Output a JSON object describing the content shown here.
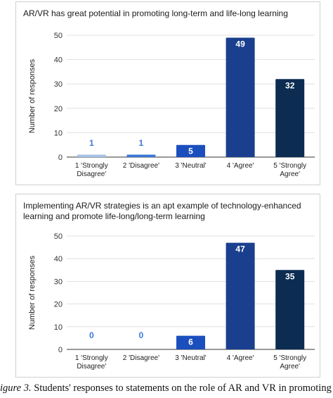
{
  "chart_data": [
    {
      "type": "bar",
      "title": "AR/VR has great potential in promoting long-term and life-long learning",
      "ylabel": "Number of responses",
      "xlabel": "",
      "ylim": [
        0,
        50
      ],
      "yticks": [
        0,
        10,
        20,
        30,
        40,
        50
      ],
      "grid": true,
      "categories": [
        [
          "1 'Strongly",
          "Disagree'"
        ],
        [
          "2 'Disagree'"
        ],
        [
          "3 'Neutral'"
        ],
        [
          "4 'Agree'"
        ],
        [
          "5 'Strongly",
          "Agree'"
        ]
      ],
      "values": [
        1,
        1,
        5,
        49,
        32
      ],
      "colors": [
        "#a9c2e8",
        "#3b78d8",
        "#1c4fbe",
        "#1a3f8e",
        "#0c2c52"
      ],
      "label_colors": [
        "#3b78d8",
        "#3b78d8",
        "#ffffff",
        "#ffffff",
        "#ffffff"
      ]
    },
    {
      "type": "bar",
      "title": "Implementing AR/VR strategies is an apt example of technology-enhanced learning and promote life-long/long-term learning",
      "ylabel": "Number of responses",
      "xlabel": "",
      "ylim": [
        0,
        50
      ],
      "yticks": [
        0,
        10,
        20,
        30,
        40,
        50
      ],
      "grid": true,
      "categories": [
        [
          "1 'Strongly",
          "Disagree'"
        ],
        [
          "2 'Disagree'"
        ],
        [
          "3 'Neutral'"
        ],
        [
          "4 'Agree'"
        ],
        [
          "5 'Strongly",
          "Agree'"
        ]
      ],
      "values": [
        0,
        0,
        6,
        47,
        35
      ],
      "colors": [
        "#a9c2e8",
        "#3b78d8",
        "#1c4fbe",
        "#1a3f8e",
        "#0c2c52"
      ],
      "label_colors": [
        "#3b78d8",
        "#3b78d8",
        "#ffffff",
        "#ffffff",
        "#ffffff"
      ]
    }
  ],
  "caption": {
    "figure_label": "igure 3.",
    "text": " Students' responses to statements on the role of AR and VR in promoting"
  }
}
